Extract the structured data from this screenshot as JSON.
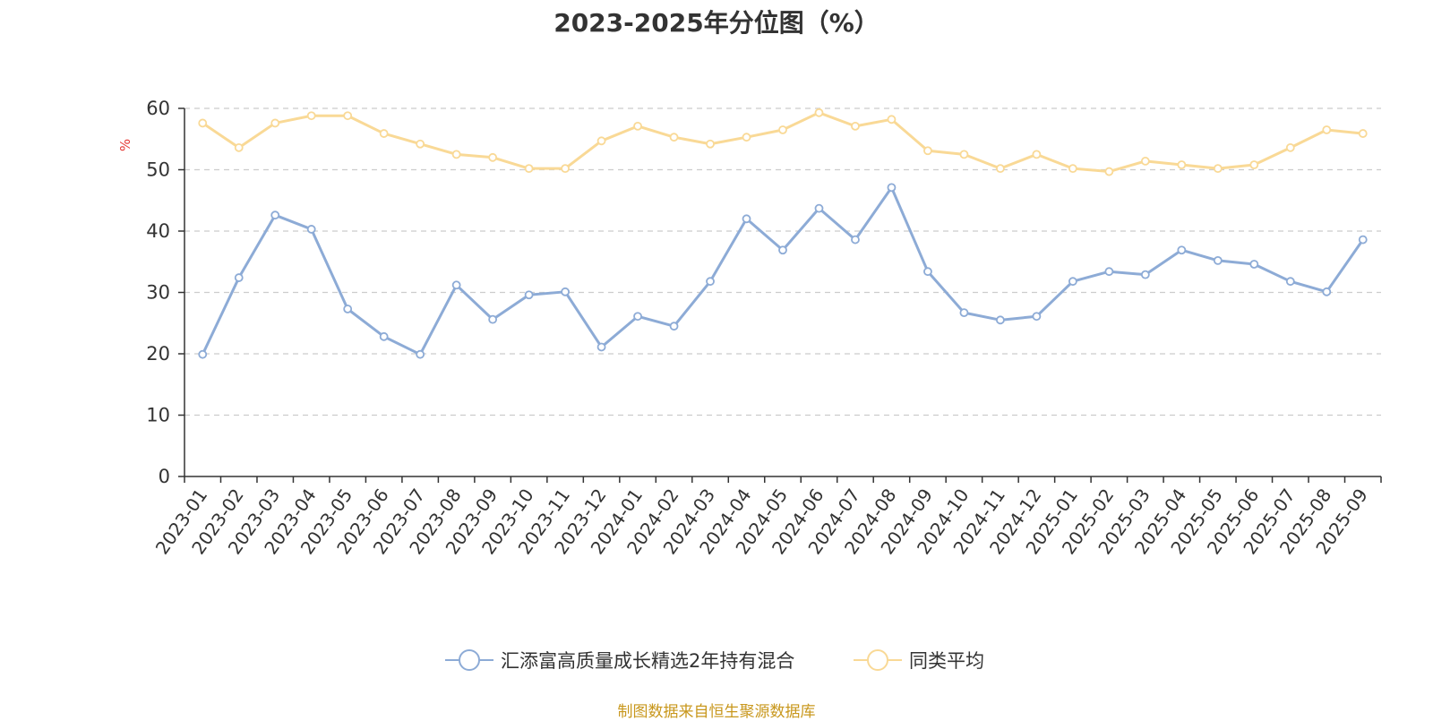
{
  "chart_data": {
    "type": "line",
    "title": "2023-2025年分位图（%）",
    "ylabel": "%",
    "xlabel": "",
    "ylim": [
      0,
      60
    ],
    "yticks": [
      0,
      10,
      20,
      30,
      40,
      50,
      60
    ],
    "grid": true,
    "legend_position": "bottom-center",
    "categories": [
      "2023-01",
      "2023-02",
      "2023-03",
      "2023-04",
      "2023-05",
      "2023-06",
      "2023-07",
      "2023-08",
      "2023-09",
      "2023-10",
      "2023-11",
      "2023-12",
      "2024-01",
      "2024-02",
      "2024-03",
      "2024-04",
      "2024-05",
      "2024-06",
      "2024-07",
      "2024-08",
      "2024-09",
      "2024-10",
      "2024-11",
      "2024-12",
      "2025-01",
      "2025-02",
      "2025-03",
      "2025-04",
      "2025-05",
      "2025-06",
      "2025-07",
      "2025-08",
      "2025-09"
    ],
    "series": [
      {
        "name": "汇添富高质量成长精选2年持有混合",
        "color": "#8dabd6",
        "values": [
          19.9,
          32.4,
          42.6,
          40.3,
          27.3,
          22.8,
          19.9,
          31.2,
          25.6,
          29.6,
          30.1,
          21.1,
          26.1,
          24.5,
          31.8,
          42.0,
          36.9,
          43.7,
          38.6,
          47.1,
          33.4,
          26.7,
          25.5,
          26.1,
          31.8,
          33.4,
          32.9,
          36.9,
          35.2,
          34.6,
          31.8,
          30.1,
          38.6
        ]
      },
      {
        "name": "同类平均",
        "color": "#f9d996",
        "values": [
          57.6,
          53.6,
          57.6,
          58.8,
          58.8,
          55.9,
          54.2,
          52.5,
          52.0,
          50.2,
          50.2,
          54.7,
          57.1,
          55.3,
          54.2,
          55.3,
          56.5,
          59.3,
          57.1,
          58.2,
          53.1,
          52.5,
          50.2,
          52.5,
          50.2,
          49.7,
          51.4,
          50.8,
          50.2,
          50.8,
          53.6,
          56.5,
          55.9
        ]
      }
    ]
  },
  "source_note": "制图数据来自恒生聚源数据库"
}
